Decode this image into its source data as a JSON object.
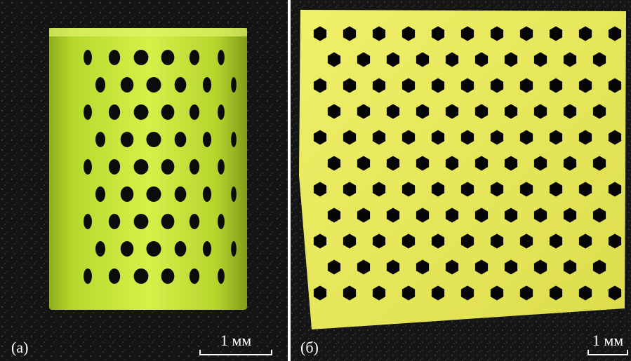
{
  "panels": [
    {
      "label": "(a)",
      "scale_text": "1 мм",
      "subject": "cylindrical-perforated-print",
      "colors": {
        "background": "#121212",
        "material": "#c6e63a",
        "material_shadow": "#8fae1e",
        "holes": "#0b0b0b"
      }
    },
    {
      "label": "(б)",
      "scale_text": "1 мм",
      "subject": "flat-hexagonal-mesh-print",
      "colors": {
        "background": "#1a1a1a",
        "material": "#e7e85a",
        "material_shadow": "#c3c43c",
        "holes": "#050505"
      }
    }
  ]
}
